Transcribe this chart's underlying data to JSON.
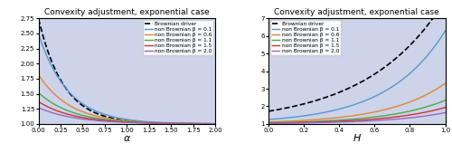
{
  "title": "Convexity adjustment, exponential case",
  "left_xlabel": "α",
  "right_xlabel": "H",
  "left_xlim": [
    0.0,
    2.0
  ],
  "left_ylim": [
    1.0,
    2.75
  ],
  "right_xlim": [
    0.0,
    1.0
  ],
  "right_ylim": [
    1.0,
    7.0
  ],
  "left_xticks": [
    0.0,
    0.25,
    0.5,
    0.75,
    1.0,
    1.25,
    1.5,
    1.75,
    2.0
  ],
  "right_xticks": [
    0.0,
    0.2,
    0.4,
    0.6,
    0.8,
    1.0
  ],
  "left_yticks": [
    1.0,
    1.25,
    1.5,
    1.75,
    2.0,
    2.25,
    2.5,
    2.75
  ],
  "right_yticks": [
    1,
    2,
    3,
    4,
    5,
    6,
    7
  ],
  "beta_values": [
    0.1,
    0.6,
    1.1,
    1.5,
    2.0
  ],
  "beta_colors": [
    "#5599d0",
    "#e08830",
    "#4aaa4a",
    "#cc3333",
    "#9966bb"
  ],
  "brownian_color": "black",
  "background_color": "#cdd3e8",
  "legend_labels": [
    "Brownian driver",
    "non Brownian β = 0.1",
    "non Brownian β = 0.6",
    "non Brownian β = 1.1",
    "non Brownian β = 1.5",
    "non Brownian β = 2.0"
  ],
  "left_bm_params": {
    "scale": 1.75,
    "shape": 3.5
  },
  "left_ou_params": {
    "0.1": {
      "scale": 1.5,
      "decay": 3.0
    },
    "0.6": {
      "scale": 0.82,
      "decay": 2.8
    },
    "1.1": {
      "scale": 0.52,
      "decay": 2.6
    },
    "1.5": {
      "scale": 0.37,
      "decay": 2.5
    },
    "2.0": {
      "scale": 0.27,
      "decay": 2.4
    }
  },
  "right_bm_params": {
    "a": 0.72,
    "b": 2.28
  },
  "right_ou_params": {
    "0.1": {
      "a": 0.248,
      "b": 3.06
    },
    "0.6": {
      "a": 0.108,
      "b": 3.06
    },
    "1.1": {
      "a": 0.063,
      "b": 3.06
    },
    "1.5": {
      "a": 0.044,
      "b": 3.06
    },
    "2.0": {
      "a": 0.03,
      "b": 3.06
    }
  }
}
